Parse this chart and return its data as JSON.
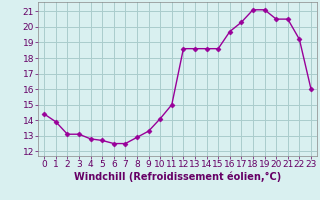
{
  "x": [
    0,
    1,
    2,
    3,
    4,
    5,
    6,
    7,
    8,
    9,
    10,
    11,
    12,
    13,
    14,
    15,
    16,
    17,
    18,
    19,
    20,
    21,
    22,
    23
  ],
  "y": [
    14.4,
    13.9,
    13.1,
    13.1,
    12.8,
    12.7,
    12.5,
    12.5,
    12.9,
    13.3,
    14.1,
    15.0,
    18.6,
    18.6,
    18.6,
    18.6,
    19.7,
    20.3,
    21.1,
    21.1,
    20.5,
    20.5,
    19.2,
    16.0
  ],
  "line_color": "#990099",
  "marker": "D",
  "marker_size": 2.5,
  "bg_color": "#d9f0f0",
  "grid_color": "#aacccc",
  "xlabel": "Windchill (Refroidissement éolien,°C)",
  "xlabel_fontsize": 7,
  "tick_fontsize": 6.5,
  "ylim": [
    11.7,
    21.6
  ],
  "yticks": [
    12,
    13,
    14,
    15,
    16,
    17,
    18,
    19,
    20,
    21
  ],
  "xlim": [
    -0.5,
    23.5
  ],
  "xticks": [
    0,
    1,
    2,
    3,
    4,
    5,
    6,
    7,
    8,
    9,
    10,
    11,
    12,
    13,
    14,
    15,
    16,
    17,
    18,
    19,
    20,
    21,
    22,
    23
  ],
  "tick_color": "#660066",
  "spine_color": "#888888",
  "linewidth": 1.0
}
